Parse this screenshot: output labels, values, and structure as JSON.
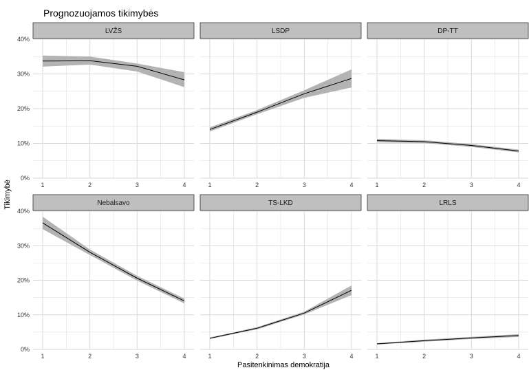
{
  "chart_data": {
    "type": "line",
    "title": "Prognozuojamos tikimybės",
    "xlabel": "Pasitenkinimas demokratija",
    "ylabel": "Tikimybė",
    "x": [
      1,
      2,
      3,
      4
    ],
    "xticks": [
      "1",
      "2",
      "3",
      "4"
    ],
    "ylim": [
      0,
      0.4
    ],
    "yticks": [
      "0%",
      "10%",
      "20%",
      "30%",
      "40%"
    ],
    "grid": true,
    "facets": [
      {
        "name": "LVŽS",
        "y": [
          0.337,
          0.338,
          0.322,
          0.283
        ],
        "lower": [
          0.321,
          0.327,
          0.307,
          0.262
        ],
        "upper": [
          0.353,
          0.35,
          0.33,
          0.305
        ]
      },
      {
        "name": "LSDP",
        "y": [
          0.14,
          0.19,
          0.243,
          0.287
        ],
        "lower": [
          0.134,
          0.184,
          0.231,
          0.261
        ],
        "upper": [
          0.146,
          0.196,
          0.253,
          0.313
        ]
      },
      {
        "name": "DP-TT",
        "y": [
          0.108,
          0.105,
          0.094,
          0.078
        ],
        "lower": [
          0.103,
          0.101,
          0.09,
          0.074
        ],
        "upper": [
          0.113,
          0.109,
          0.098,
          0.082
        ]
      },
      {
        "name": "Nebalsavo",
        "y": [
          0.366,
          0.281,
          0.206,
          0.14
        ],
        "lower": [
          0.348,
          0.273,
          0.199,
          0.133
        ],
        "upper": [
          0.384,
          0.289,
          0.213,
          0.147
        ]
      },
      {
        "name": "TS-LKD",
        "y": [
          0.032,
          0.061,
          0.105,
          0.171
        ],
        "lower": [
          0.03,
          0.058,
          0.101,
          0.157
        ],
        "upper": [
          0.034,
          0.064,
          0.109,
          0.185
        ]
      },
      {
        "name": "LRLS",
        "y": [
          0.016,
          0.025,
          0.033,
          0.04
        ],
        "lower": [
          0.014,
          0.022,
          0.03,
          0.036
        ],
        "upper": [
          0.018,
          0.028,
          0.036,
          0.044
        ]
      }
    ]
  },
  "colors": {
    "panel_background": "#ffffff",
    "grid": "#d9d9d9",
    "strip_fill": "#bfbfbf",
    "strip_border": "#333333",
    "ribbon": "#b3b3b3",
    "line": "#000000"
  }
}
